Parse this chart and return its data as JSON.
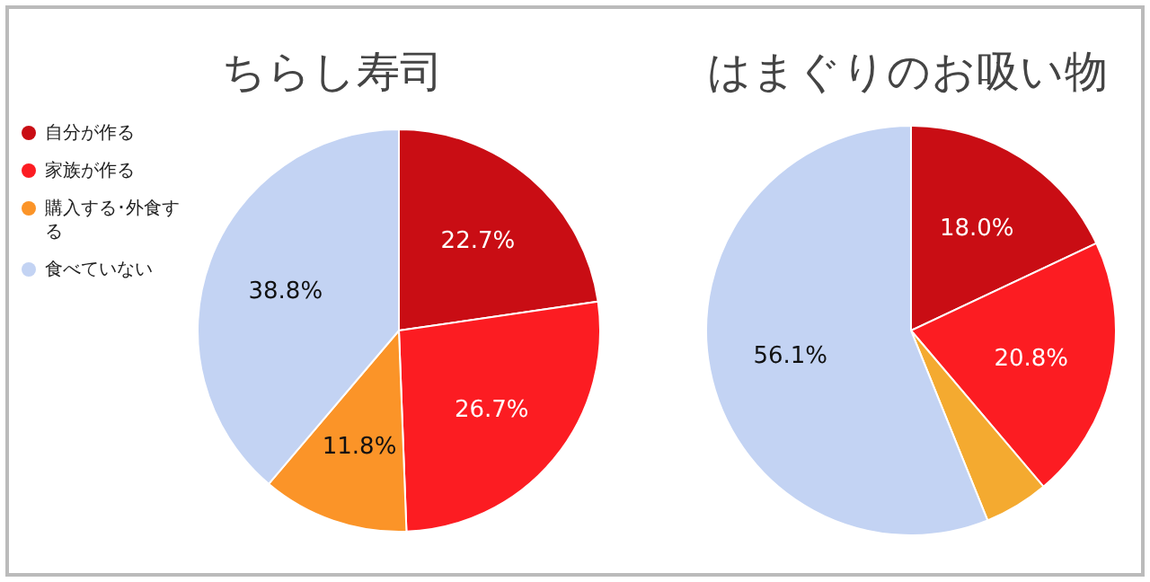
{
  "chart_data": [
    {
      "type": "pie",
      "title": "ちらし寿司",
      "categories": [
        "自分が作る",
        "家族が作る",
        "購入する･外食する",
        "食べていない"
      ],
      "values": [
        22.7,
        26.7,
        11.8,
        38.8
      ],
      "colors": [
        "#c90d14",
        "#fc1c22",
        "#fb9428",
        "#c3d3f3"
      ],
      "value_labels": [
        "22.7%",
        "26.7%",
        "11.8%",
        "38.8%"
      ],
      "legend": "left"
    },
    {
      "type": "pie",
      "title": "はまぐりのお吸い物",
      "categories": [
        null,
        null,
        null,
        null
      ],
      "values": [
        18.0,
        20.8,
        5.1,
        56.1
      ],
      "colors": [
        "#c90d14",
        "#fc1c22",
        "#f4aa30",
        "#c3d3f3"
      ],
      "value_labels": [
        "18.0%",
        "20.8%",
        null,
        "56.1%"
      ]
    }
  ]
}
